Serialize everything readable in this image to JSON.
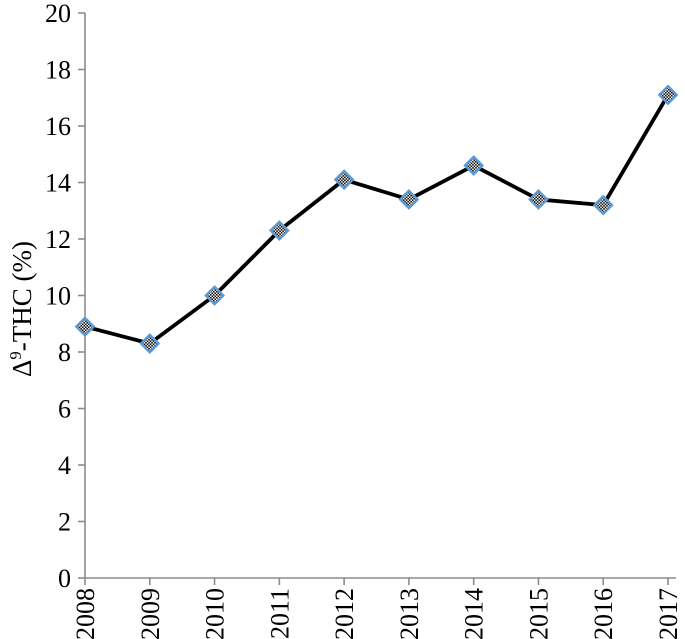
{
  "figure": {
    "background_color": "#ffffff",
    "axis_color": "#8c8c8c",
    "tick_label_color": "#000000"
  },
  "chart_data": {
    "type": "line",
    "title": "",
    "categories": [
      "2008",
      "2009",
      "2010",
      "2011",
      "2012",
      "2013",
      "2014",
      "2015",
      "2016",
      "2017"
    ],
    "series": [
      {
        "name": "Δ9-THC (%)",
        "values": [
          8.9,
          8.3,
          10.0,
          12.3,
          14.1,
          13.4,
          14.6,
          13.4,
          13.2,
          17.1
        ],
        "line_color": "#000000",
        "line_width": 3.8,
        "marker": "diamond",
        "marker_fill": "black-white-checkerboard",
        "marker_border_color": "#5b9bd5"
      }
    ],
    "xlabel": "",
    "ylabel": "Δ9-THC (%)",
    "ylabel_parts": {
      "base": "Δ",
      "superscript": "9",
      "rest": "-THC (%)"
    },
    "ylim": [
      0,
      20
    ],
    "yticks": [
      "0",
      "2",
      "4",
      "6",
      "8",
      "10",
      "12",
      "14",
      "16",
      "18",
      "20"
    ],
    "ytick_font_size": 26,
    "xtick_font_size": 26,
    "x_tick_rotation": -90,
    "grid": false,
    "legend_position": "none"
  }
}
